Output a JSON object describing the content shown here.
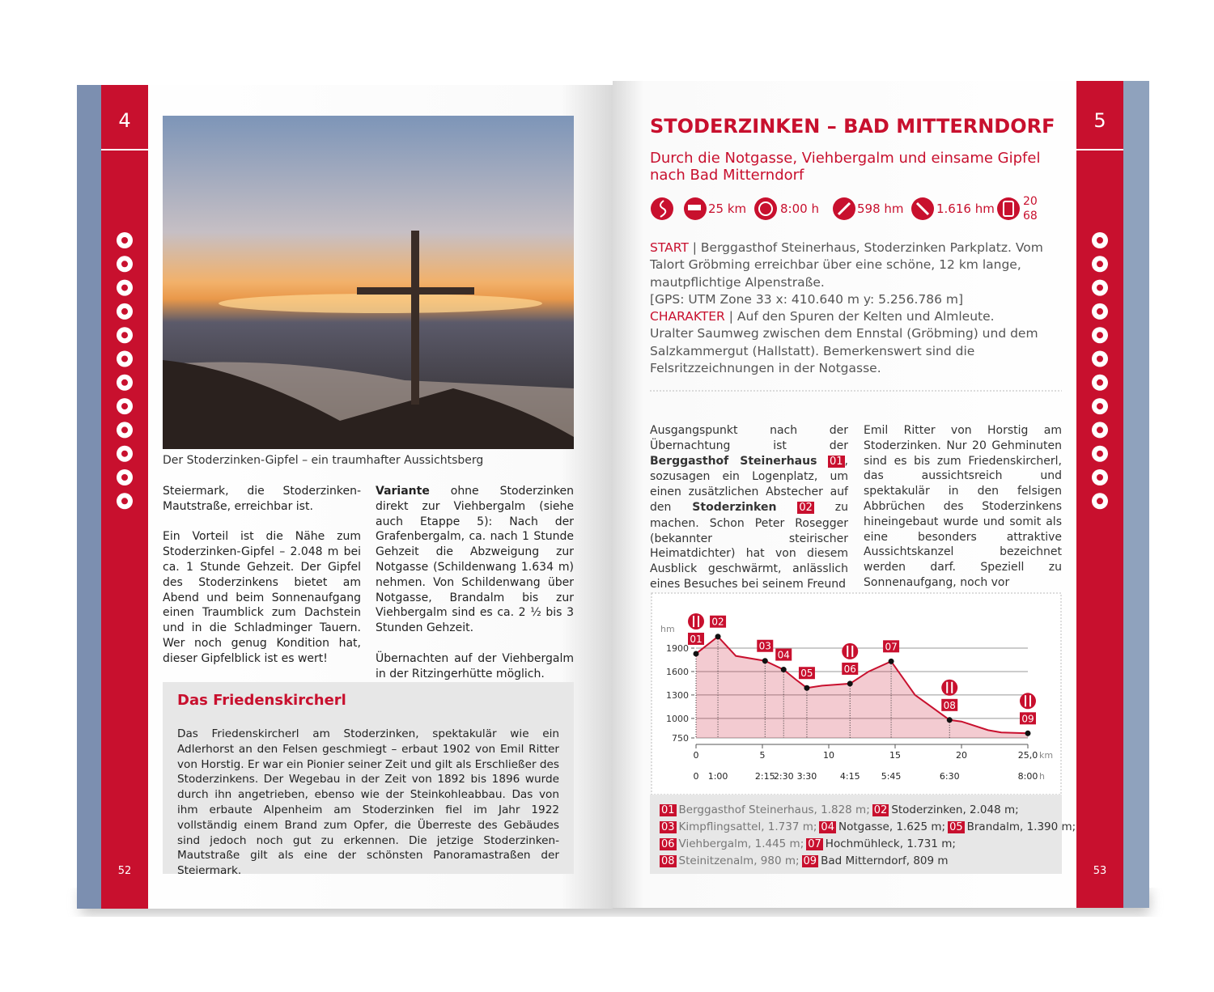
{
  "left": {
    "tab": "4",
    "caption": "Der Stoderzinken-Gipfel – ein traumhafter Aussichtsberg",
    "col1": [
      "Steiermark, die Stoderzinken-Mautstraße, erreichbar ist.",
      "Ein Vorteil ist die Nähe zum Stoderzinken-Gipfel – 2.048 m bei ca. 1 Stunde Gehzeit. Der Gipfel des Stoderzinkens bietet am Abend und beim Sonnenaufgang einen Traumblick zum Dachstein und in die Schladminger Tauern. Wer noch genug Kondition hat, dieser Gipfelblick ist es wert!"
    ],
    "col2": {
      "bold": "Variante",
      "text": " ohne Stoderzinken direkt zur Viehbergalm (siehe auch Etappe 5): Nach der Grafenbergalm, ca. nach 1 Stunde Gehzeit die Abzweigung zur Notgasse (Schildenwang 1.634 m) nehmen. Von Schildenwang über Notgasse, Brandalm bis zur Viehbergalm sind es ca. 2 ½ bis 3 Stunden Gehzeit.",
      "note": "Übernachten auf der Viehbergalm in der Ritzingerhütte möglich."
    },
    "box": {
      "title": "Das Friedenskircherl",
      "text": "Das Friedenskircherl am Stoderzinken, spektakulär wie ein Adlerhorst an den Felsen geschmiegt – erbaut 1902 von Emil Ritter von Horstig. Er war ein Pionier seiner Zeit und gilt als Erschließer des Stoderzinkens. Der Wegebau in der Zeit von 1892 bis 1896 wurde durch ihn angetrieben, ebenso wie der Steinkohleabbau. Das von ihm erbaute Alpenheim am Stoderzinken fiel im Jahr 1922 vollständig einem Brand zum Opfer, die Überreste des Gebäudes sind jedoch noch gut zu erkennen. Die jetzige Stoderzinken-Mautstraße gilt als eine der schönsten Panoramastraßen der Steiermark."
    },
    "folio": "52"
  },
  "right": {
    "tab": "5",
    "title": "STODERZINKEN – BAD MITTERNDORF",
    "subtitle": "Durch die Notgasse, Viehbergalm und einsame Gipfel nach Bad Mitterndorf",
    "stats": {
      "distance": "25 km",
      "time": "8:00 h",
      "ascent": "598 hm",
      "descent": "1.616 hm",
      "map_top": "20",
      "map_bottom": "68"
    },
    "start_label": "START",
    "start_text": " | Berggasthof Steinerhaus, Stoderzinken Parkplatz. Vom Talort Gröbming erreichbar über eine schöne, 12 km lange, mautpflichtige Alpenstraße.",
    "gps": "[GPS: UTM Zone 33  x: 410.640 m  y: 5.256.786 m]",
    "char_label": "CHARAKTER",
    "char_text": " | Auf den Spuren der Kelten und Almleute.",
    "char_more": "Uralter Saumweg zwischen dem Ennstal (Gröbming) und dem Salzkammergut (Hallstatt). Bemerkenswert sind die Felsritzzeichnungen in der Notgasse.",
    "body1": [
      "Ausgangspunkt nach der Übernachtung ist der ",
      "Berggasthof Steinerhaus",
      "01",
      ", sozusagen ein Logenplatz, um einen zusätzlichen Abstecher auf den ",
      "Stoderzinken",
      "02",
      " zu machen. Schon Peter Rosegger (bekannter steirischer Heimatdichter) hat von diesem Ausblick geschwärmt, anlässlich eines Besuches bei seinem Freund"
    ],
    "body2": "Emil Ritter von Horstig am Stoderzinken. Nur 20 Gehminuten sind es bis zum Friedenskircherl, das aussichtsreich und spektakulär in den felsigen Abbrüchen des Stoderzinkens hineingebaut wurde und somit als eine besonders attraktive Aussichtskanzel bezeichnet werden darf. Speziell zu Sonnenaufgang, noch vor",
    "legend": [
      [
        {
          "num": "01",
          "text": "Berggasthof Steinerhaus, 1.828 m;"
        },
        {
          "num": "02",
          "text": "Stoderzinken, 2.048 m;"
        }
      ],
      [
        {
          "num": "03",
          "text": "Kimpflingsattel, 1.737 m;"
        },
        {
          "num": "04",
          "text": "Notgasse, 1.625 m;"
        },
        {
          "num": "05",
          "text": "Brandalm, 1.390 m;"
        }
      ],
      [
        {
          "num": "06",
          "text": "Viehbergalm, 1.445 m;"
        },
        {
          "num": "07",
          "text": "Hochmühleck, 1.731 m;"
        }
      ],
      [
        {
          "num": "08",
          "text": "Steinitzenalm, 980 m;"
        },
        {
          "num": "09",
          "text": "Bad Mitterndorf, 809 m"
        }
      ]
    ],
    "folio": "53"
  },
  "chart_data": {
    "type": "area",
    "color": "#c8102e",
    "x": [
      0,
      1.65,
      3,
      5.2,
      6.6,
      7.5,
      8.35,
      9.5,
      11.6,
      13,
      14.7,
      16.5,
      19.1,
      20,
      22,
      23,
      25
    ],
    "values": [
      1828,
      2048,
      1800,
      1737,
      1625,
      1500,
      1390,
      1420,
      1445,
      1600,
      1731,
      1300,
      980,
      960,
      850,
      820,
      809
    ],
    "xlim": [
      0,
      25
    ],
    "ylim": [
      750,
      2100
    ],
    "xticks": [
      0,
      5,
      10,
      15,
      20,
      {
        "value": 25,
        "label": "25,0"
      }
    ],
    "yticks": [
      750,
      1000,
      1300,
      1600,
      1900
    ],
    "x_unit": "km",
    "y_unit": "hm",
    "time_unit": "h",
    "time_ticks": [
      {
        "value": 0,
        "label": "0"
      },
      {
        "value": 1.65,
        "label": "1:00"
      },
      {
        "value": 5.2,
        "label": "2:15"
      },
      {
        "value": 6.6,
        "label": "2:30"
      },
      {
        "value": 8.35,
        "label": "3:30"
      },
      {
        "value": 11.6,
        "label": "4:15"
      },
      {
        "value": 14.7,
        "label": "5:45"
      },
      {
        "value": 19.1,
        "label": "6:30"
      },
      {
        "value": 25,
        "label": "8:00"
      }
    ],
    "waypoints": [
      {
        "label": "01",
        "x": 0,
        "y": 1828,
        "restaurant": true
      },
      {
        "label": "02",
        "x": 1.65,
        "y": 2048,
        "restaurant": false
      },
      {
        "label": "03",
        "x": 5.2,
        "y": 1737,
        "restaurant": false
      },
      {
        "label": "04",
        "x": 6.6,
        "y": 1625,
        "restaurant": false
      },
      {
        "label": "05",
        "x": 8.35,
        "y": 1390,
        "restaurant": false
      },
      {
        "label": "06",
        "x": 11.6,
        "y": 1445,
        "restaurant": true
      },
      {
        "label": "07",
        "x": 14.7,
        "y": 1731,
        "restaurant": false
      },
      {
        "label": "08",
        "x": 19.1,
        "y": 980,
        "restaurant": true
      },
      {
        "label": "09",
        "x": 25,
        "y": 809,
        "restaurant": true
      }
    ]
  }
}
